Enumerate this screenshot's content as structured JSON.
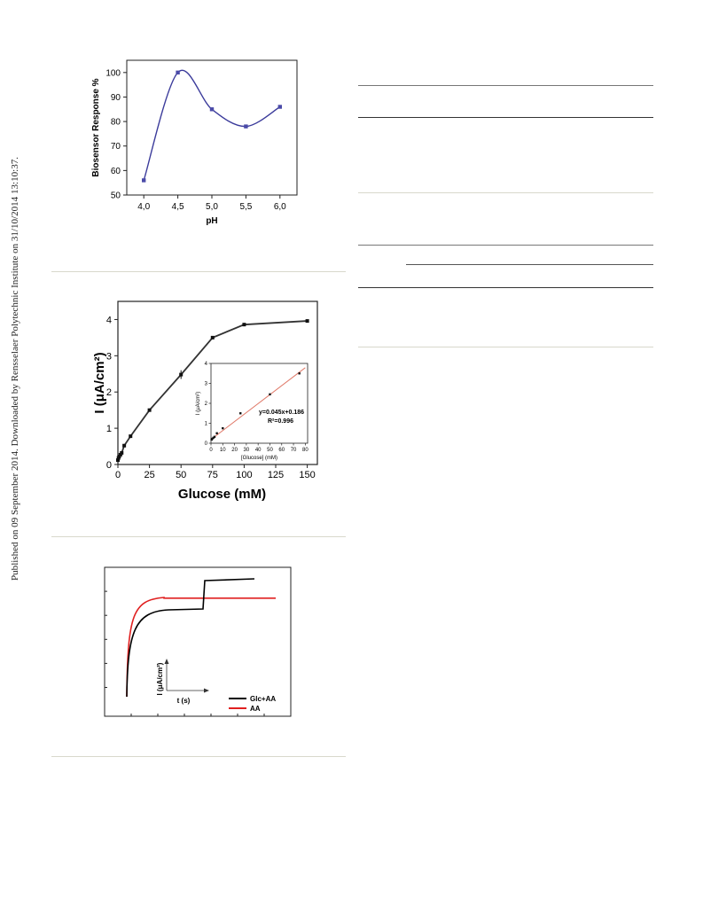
{
  "side_note": "Published on 09 September 2014. Downloaded by Rensselaer Polytechnic Institute on 31/10/2014 13:10:37.",
  "chart_data": [
    {
      "type": "line",
      "xlabel": "pH",
      "ylabel": "Biosensor Response %",
      "x": [
        4.0,
        4.5,
        5.0,
        5.5,
        6.0
      ],
      "y": [
        56,
        100,
        85,
        78,
        86
      ],
      "x_tick_labels": [
        "4,0",
        "4,5",
        "5,0",
        "5,5",
        "6,0"
      ],
      "y_tick_labels": [
        "50",
        "60",
        "70",
        "80",
        "90",
        "100"
      ],
      "xlim": [
        3.75,
        6.25
      ],
      "ylim": [
        50,
        105
      ],
      "line_color": "#3b3b9b",
      "marker_color": "#4a4aa8"
    },
    {
      "type": "line",
      "xlabel": "Glucose (mM)",
      "ylabel": "I (μA/cm²)",
      "x": [
        0,
        0.5,
        1,
        2,
        3,
        5,
        10,
        25,
        50,
        75,
        100,
        150
      ],
      "y": [
        0.12,
        0.18,
        0.22,
        0.27,
        0.32,
        0.52,
        0.78,
        1.5,
        2.48,
        3.5,
        3.86,
        3.96
      ],
      "x_tick_labels": [
        "0",
        "25",
        "50",
        "75",
        "100",
        "125",
        "150"
      ],
      "y_tick_labels": [
        "0",
        "1",
        "2",
        "3",
        "4"
      ],
      "xlim": [
        0,
        158
      ],
      "ylim": [
        0,
        4.5
      ],
      "line_color": "#333333",
      "inset": {
        "type": "scatter",
        "xlabel": "[Glucose] (mM)",
        "ylabel": "I (μA/cm²)",
        "x": [
          0.5,
          1,
          2,
          3,
          5,
          10,
          25,
          50,
          75
        ],
        "y": [
          0.18,
          0.22,
          0.27,
          0.32,
          0.5,
          0.75,
          1.5,
          2.45,
          3.5
        ],
        "x_tick_labels": [
          "0",
          "10",
          "20",
          "30",
          "40",
          "50",
          "60",
          "70",
          "80"
        ],
        "y_tick_labels": [
          "0",
          "1",
          "2",
          "3",
          "4"
        ],
        "xlim": [
          0,
          82
        ],
        "ylim": [
          0,
          4
        ],
        "fit_slope": 0.045,
        "fit_intercept": 0.186,
        "equation": "y=0.045x+0.186",
        "r2": "R²=0.996",
        "fit_color": "#e07a6a"
      }
    },
    {
      "type": "line",
      "xlabel": "t (s)",
      "ylabel": "I (μA/cm²)",
      "series": [
        {
          "name": "Glc+AA",
          "color": "#000000"
        },
        {
          "name": "AA",
          "color": "#e02020"
        }
      ]
    }
  ]
}
